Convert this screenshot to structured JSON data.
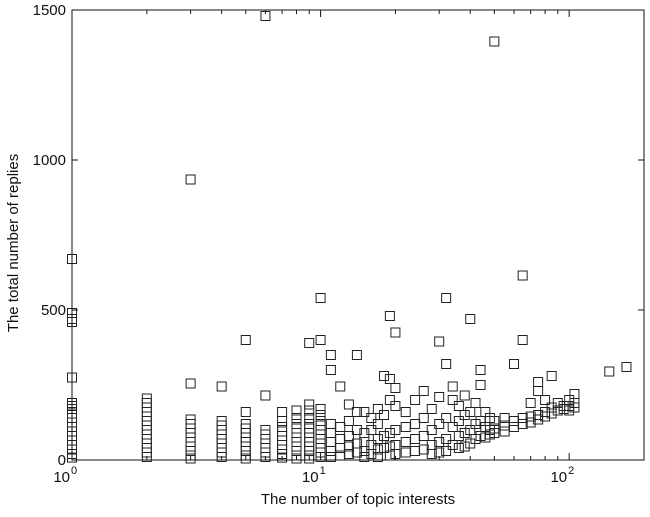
{
  "chart_data": {
    "type": "scatter",
    "title": "",
    "xlabel": "The number of topic interests",
    "ylabel": "The total number of replies",
    "xscale": "log",
    "xlim": [
      1,
      200
    ],
    "ylim": [
      0,
      1500
    ],
    "x_ticks": [
      {
        "base": "10",
        "exp": "0",
        "value": 1
      },
      {
        "base": "10",
        "exp": "1",
        "value": 10
      },
      {
        "base": "10",
        "exp": "2",
        "value": 100
      }
    ],
    "y_ticks": [
      {
        "label": "0",
        "value": 0
      },
      {
        "label": "500",
        "value": 500
      },
      {
        "label": "1000",
        "value": 1000
      },
      {
        "label": "1500",
        "value": 1500
      }
    ],
    "grid": false,
    "marker": "open-square",
    "color": "#222222",
    "points": [
      [
        1,
        670
      ],
      [
        1,
        490
      ],
      [
        1,
        470
      ],
      [
        1,
        460
      ],
      [
        1,
        275
      ],
      [
        1,
        190
      ],
      [
        1,
        180
      ],
      [
        1,
        170
      ],
      [
        1,
        155
      ],
      [
        1,
        140
      ],
      [
        1,
        125
      ],
      [
        1,
        110
      ],
      [
        1,
        95
      ],
      [
        1,
        80
      ],
      [
        1,
        65
      ],
      [
        1,
        50
      ],
      [
        1,
        35
      ],
      [
        1,
        20
      ],
      [
        1,
        8
      ],
      [
        2,
        205
      ],
      [
        2,
        190
      ],
      [
        2,
        175
      ],
      [
        2,
        160
      ],
      [
        2,
        145
      ],
      [
        2,
        130
      ],
      [
        2,
        115
      ],
      [
        2,
        100
      ],
      [
        2,
        85
      ],
      [
        2,
        70
      ],
      [
        2,
        55
      ],
      [
        2,
        40
      ],
      [
        2,
        25
      ],
      [
        2,
        10
      ],
      [
        3,
        935
      ],
      [
        3,
        255
      ],
      [
        3,
        135
      ],
      [
        3,
        120
      ],
      [
        3,
        105
      ],
      [
        3,
        90
      ],
      [
        3,
        75
      ],
      [
        3,
        60
      ],
      [
        3,
        45
      ],
      [
        3,
        30
      ],
      [
        3,
        15
      ],
      [
        3,
        5
      ],
      [
        4,
        245
      ],
      [
        4,
        130
      ],
      [
        4,
        115
      ],
      [
        4,
        100
      ],
      [
        4,
        85
      ],
      [
        4,
        70
      ],
      [
        4,
        55
      ],
      [
        4,
        40
      ],
      [
        4,
        25
      ],
      [
        4,
        10
      ],
      [
        5,
        400
      ],
      [
        5,
        160
      ],
      [
        5,
        120
      ],
      [
        5,
        105
      ],
      [
        5,
        90
      ],
      [
        5,
        75
      ],
      [
        5,
        60
      ],
      [
        5,
        45
      ],
      [
        5,
        30
      ],
      [
        5,
        15
      ],
      [
        5,
        5
      ],
      [
        6,
        1480
      ],
      [
        6,
        215
      ],
      [
        6,
        100
      ],
      [
        6,
        85
      ],
      [
        6,
        70
      ],
      [
        6,
        55
      ],
      [
        6,
        40
      ],
      [
        6,
        25
      ],
      [
        6,
        10
      ],
      [
        7,
        160
      ],
      [
        7,
        130
      ],
      [
        7,
        110
      ],
      [
        7,
        95
      ],
      [
        7,
        80
      ],
      [
        7,
        65
      ],
      [
        7,
        50
      ],
      [
        7,
        35
      ],
      [
        7,
        20
      ],
      [
        7,
        8
      ],
      [
        8,
        165
      ],
      [
        8,
        140
      ],
      [
        8,
        120
      ],
      [
        8,
        105
      ],
      [
        8,
        90
      ],
      [
        8,
        75
      ],
      [
        8,
        60
      ],
      [
        8,
        45
      ],
      [
        8,
        30
      ],
      [
        8,
        15
      ],
      [
        8,
        5
      ],
      [
        9,
        390
      ],
      [
        9,
        185
      ],
      [
        9,
        165
      ],
      [
        9,
        140
      ],
      [
        9,
        120
      ],
      [
        9,
        105
      ],
      [
        9,
        90
      ],
      [
        9,
        75
      ],
      [
        9,
        60
      ],
      [
        9,
        45
      ],
      [
        9,
        30
      ],
      [
        9,
        15
      ],
      [
        9,
        5
      ],
      [
        10,
        540
      ],
      [
        10,
        400
      ],
      [
        10,
        170
      ],
      [
        10,
        150
      ],
      [
        10,
        130
      ],
      [
        10,
        115
      ],
      [
        10,
        100
      ],
      [
        10,
        85
      ],
      [
        10,
        70
      ],
      [
        10,
        55
      ],
      [
        10,
        40
      ],
      [
        10,
        25
      ],
      [
        10,
        10
      ],
      [
        11,
        350
      ],
      [
        11,
        300
      ],
      [
        11,
        120
      ],
      [
        11,
        90
      ],
      [
        11,
        60
      ],
      [
        11,
        30
      ],
      [
        11,
        10
      ],
      [
        12,
        245
      ],
      [
        12,
        110
      ],
      [
        12,
        70
      ],
      [
        12,
        40
      ],
      [
        12,
        15
      ],
      [
        13,
        185
      ],
      [
        13,
        130
      ],
      [
        13,
        80
      ],
      [
        13,
        45
      ],
      [
        13,
        20
      ],
      [
        14,
        350
      ],
      [
        14,
        160
      ],
      [
        14,
        100
      ],
      [
        14,
        55
      ],
      [
        14,
        25
      ],
      [
        15,
        160
      ],
      [
        15,
        90
      ],
      [
        15,
        60
      ],
      [
        15,
        30
      ],
      [
        15,
        10
      ],
      [
        16,
        140
      ],
      [
        16,
        100
      ],
      [
        16,
        50
      ],
      [
        16,
        20
      ],
      [
        17,
        170
      ],
      [
        17,
        120
      ],
      [
        17,
        70
      ],
      [
        17,
        35
      ],
      [
        17,
        10
      ],
      [
        18,
        280
      ],
      [
        18,
        150
      ],
      [
        18,
        80
      ],
      [
        18,
        40
      ],
      [
        19,
        480
      ],
      [
        19,
        270
      ],
      [
        19,
        200
      ],
      [
        19,
        90
      ],
      [
        19,
        45
      ],
      [
        19,
        15
      ],
      [
        20,
        425
      ],
      [
        20,
        240
      ],
      [
        20,
        180
      ],
      [
        20,
        100
      ],
      [
        20,
        50
      ],
      [
        20,
        20
      ],
      [
        22,
        160
      ],
      [
        22,
        110
      ],
      [
        22,
        60
      ],
      [
        22,
        25
      ],
      [
        24,
        200
      ],
      [
        24,
        120
      ],
      [
        24,
        70
      ],
      [
        24,
        30
      ],
      [
        26,
        230
      ],
      [
        26,
        140
      ],
      [
        26,
        80
      ],
      [
        26,
        35
      ],
      [
        28,
        170
      ],
      [
        28,
        100
      ],
      [
        28,
        50
      ],
      [
        28,
        20
      ],
      [
        30,
        395
      ],
      [
        30,
        210
      ],
      [
        30,
        120
      ],
      [
        30,
        60
      ],
      [
        30,
        25
      ],
      [
        32,
        540
      ],
      [
        32,
        320
      ],
      [
        32,
        140
      ],
      [
        32,
        70
      ],
      [
        32,
        30
      ],
      [
        34,
        245
      ],
      [
        34,
        200
      ],
      [
        34,
        110
      ],
      [
        34,
        50
      ],
      [
        36,
        180
      ],
      [
        36,
        130
      ],
      [
        36,
        80
      ],
      [
        36,
        40
      ],
      [
        38,
        215
      ],
      [
        38,
        150
      ],
      [
        38,
        90
      ],
      [
        38,
        45
      ],
      [
        40,
        470
      ],
      [
        40,
        160
      ],
      [
        40,
        100
      ],
      [
        40,
        55
      ],
      [
        42,
        190
      ],
      [
        42,
        120
      ],
      [
        42,
        70
      ],
      [
        44,
        300
      ],
      [
        44,
        250
      ],
      [
        44,
        130
      ],
      [
        44,
        80
      ],
      [
        46,
        160
      ],
      [
        46,
        110
      ],
      [
        46,
        75
      ],
      [
        48,
        140
      ],
      [
        48,
        100
      ],
      [
        48,
        85
      ],
      [
        50,
        1395
      ],
      [
        50,
        130
      ],
      [
        50,
        105
      ],
      [
        50,
        90
      ],
      [
        55,
        140
      ],
      [
        55,
        115
      ],
      [
        55,
        95
      ],
      [
        60,
        320
      ],
      [
        60,
        130
      ],
      [
        60,
        110
      ],
      [
        65,
        615
      ],
      [
        65,
        400
      ],
      [
        65,
        140
      ],
      [
        65,
        120
      ],
      [
        70,
        190
      ],
      [
        70,
        145
      ],
      [
        70,
        125
      ],
      [
        75,
        260
      ],
      [
        75,
        230
      ],
      [
        75,
        150
      ],
      [
        75,
        135
      ],
      [
        80,
        200
      ],
      [
        80,
        160
      ],
      [
        80,
        145
      ],
      [
        85,
        280
      ],
      [
        85,
        175
      ],
      [
        85,
        155
      ],
      [
        90,
        190
      ],
      [
        90,
        165
      ],
      [
        95,
        180
      ],
      [
        95,
        170
      ],
      [
        100,
        200
      ],
      [
        100,
        180
      ],
      [
        100,
        165
      ],
      [
        105,
        220
      ],
      [
        105,
        190
      ],
      [
        105,
        175
      ],
      [
        145,
        295
      ],
      [
        170,
        310
      ]
    ]
  }
}
